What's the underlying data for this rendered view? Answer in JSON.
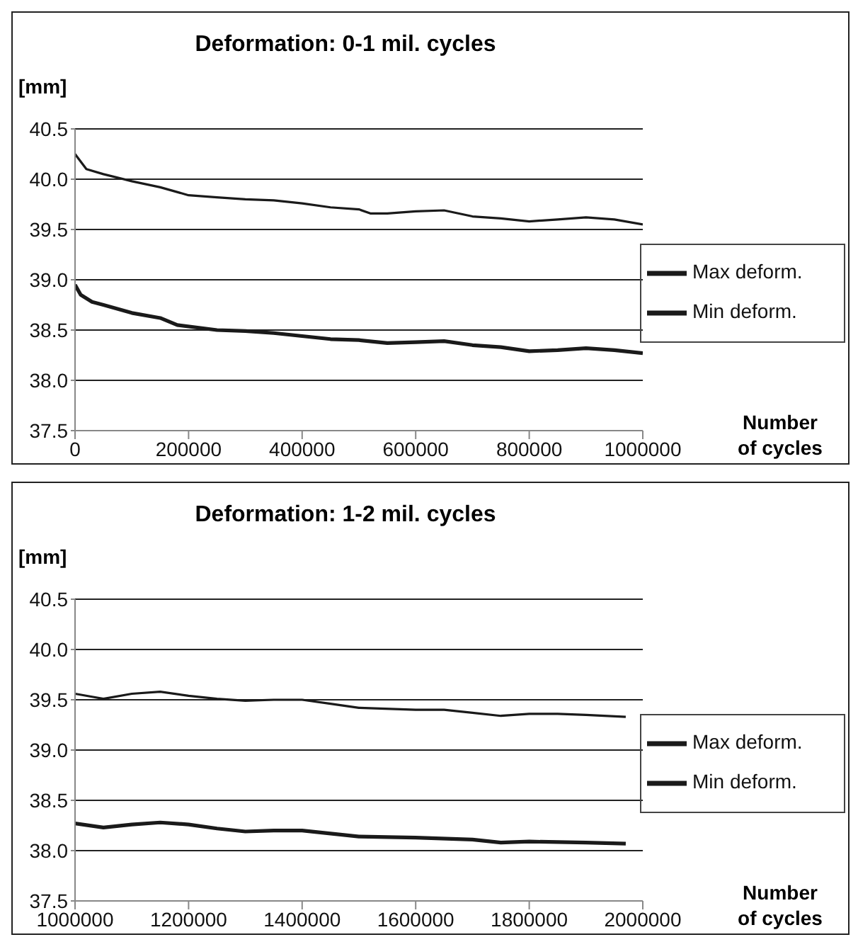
{
  "chart_data": [
    {
      "type": "line",
      "title": "Deformation: 0-1 mil. cycles",
      "ylabel": "[mm]",
      "xlabel": "Number\nof cycles",
      "legend": "right",
      "grid": "y",
      "marker": "none",
      "line_style": "solid",
      "xlim": [
        0,
        1000000
      ],
      "xticks": [
        0,
        200000,
        400000,
        600000,
        800000,
        1000000
      ],
      "ylim": [
        37.5,
        40.5
      ],
      "yticks": [
        37.5,
        {
          "value": 38,
          "label": "38.0"
        },
        38.5,
        {
          "value": 39,
          "label": "39.0"
        },
        39.5,
        {
          "value": 40,
          "label": "40.0"
        },
        40.5
      ],
      "series": [
        {
          "name": "Max deform.",
          "color": "#1a1a1a",
          "x": [
            0,
            20000,
            50000,
            100000,
            150000,
            200000,
            250000,
            300000,
            350000,
            400000,
            450000,
            500000,
            520000,
            550000,
            600000,
            650000,
            700000,
            750000,
            800000,
            850000,
            900000,
            950000,
            1000000
          ],
          "values": [
            40.25,
            40.1,
            40.05,
            39.98,
            39.92,
            39.84,
            39.82,
            39.8,
            39.79,
            39.76,
            39.72,
            39.7,
            39.66,
            39.66,
            39.68,
            39.69,
            39.63,
            39.61,
            39.58,
            39.6,
            39.62,
            39.6,
            39.55
          ]
        },
        {
          "name": "Min deform.",
          "color": "#1a1a1a",
          "x": [
            0,
            10000,
            30000,
            50000,
            100000,
            150000,
            180000,
            250000,
            300000,
            350000,
            400000,
            450000,
            500000,
            550000,
            600000,
            650000,
            700000,
            750000,
            800000,
            850000,
            900000,
            950000,
            1000000
          ],
          "values": [
            38.95,
            38.85,
            38.78,
            38.75,
            38.67,
            38.62,
            38.55,
            38.5,
            38.49,
            38.47,
            38.44,
            38.41,
            38.4,
            38.37,
            38.38,
            38.39,
            38.35,
            38.33,
            38.29,
            38.3,
            38.32,
            38.3,
            38.27
          ]
        }
      ]
    },
    {
      "type": "line",
      "title": "Deformation: 1-2 mil. cycles",
      "ylabel": "[mm]",
      "xlabel": "Number\nof cycles",
      "legend": "right",
      "grid": "y",
      "marker": "none",
      "line_style": "solid",
      "xlim": [
        1000000,
        2000000
      ],
      "xticks": [
        1000000,
        1200000,
        1400000,
        1600000,
        1800000,
        2000000
      ],
      "ylim": [
        37.5,
        40.5
      ],
      "yticks": [
        37.5,
        {
          "value": 38,
          "label": "38.0"
        },
        38.5,
        {
          "value": 39,
          "label": "39.0"
        },
        39.5,
        {
          "value": 40,
          "label": "40.0"
        },
        40.5
      ],
      "series": [
        {
          "name": "Max deform.",
          "color": "#1a1a1a",
          "x": [
            1000000,
            1030000,
            1050000,
            1100000,
            1150000,
            1200000,
            1250000,
            1300000,
            1350000,
            1400000,
            1450000,
            1500000,
            1600000,
            1650000,
            1700000,
            1750000,
            1800000,
            1850000,
            1900000,
            1970000
          ],
          "values": [
            39.56,
            39.53,
            39.51,
            39.56,
            39.58,
            39.54,
            39.51,
            39.49,
            39.5,
            39.5,
            39.46,
            39.42,
            39.4,
            39.4,
            39.37,
            39.34,
            39.36,
            39.36,
            39.35,
            39.33
          ]
        },
        {
          "name": "Min deform.",
          "color": "#1a1a1a",
          "x": [
            1000000,
            1050000,
            1100000,
            1150000,
            1200000,
            1250000,
            1300000,
            1350000,
            1400000,
            1450000,
            1500000,
            1600000,
            1700000,
            1750000,
            1800000,
            1900000,
            1970000
          ],
          "values": [
            38.27,
            38.23,
            38.26,
            38.28,
            38.26,
            38.22,
            38.19,
            38.2,
            38.2,
            38.17,
            38.14,
            38.13,
            38.11,
            38.08,
            38.09,
            38.08,
            38.07
          ]
        }
      ]
    }
  ]
}
